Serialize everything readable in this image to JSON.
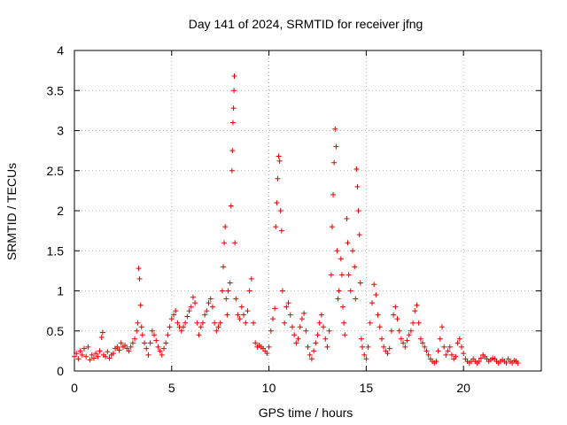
{
  "chart_data": {
    "type": "scatter",
    "title": "Day 141 of 2024, SRMTID for receiver jfng",
    "xlabel": "GPS time / hours",
    "ylabel": "SRMTID / TECUs",
    "xlim": [
      0,
      24
    ],
    "ylim": [
      0,
      4
    ],
    "xticks": [
      0,
      5,
      10,
      15,
      20
    ],
    "yticks": [
      0,
      0.5,
      1,
      1.5,
      2,
      2.5,
      3,
      3.5,
      4
    ],
    "xtick_labels": [
      "0",
      "5",
      "10",
      "15",
      "20"
    ],
    "ytick_labels": [
      "0",
      "0.5",
      "1",
      "1.5",
      "2",
      "2.5",
      "3",
      "3.5",
      "4"
    ],
    "grid": true,
    "marker": "+",
    "color": "#e00000",
    "series": [
      {
        "name": "SRMTID",
        "points": [
          [
            0.0,
            0.18
          ],
          [
            0.1,
            0.22
          ],
          [
            0.2,
            0.15
          ],
          [
            0.3,
            0.25
          ],
          [
            0.4,
            0.2
          ],
          [
            0.5,
            0.28
          ],
          [
            0.6,
            0.18
          ],
          [
            0.7,
            0.3
          ],
          [
            0.8,
            0.14
          ],
          [
            0.9,
            0.2
          ],
          [
            1.0,
            0.16
          ],
          [
            1.1,
            0.22
          ],
          [
            1.2,
            0.18
          ],
          [
            1.3,
            0.25
          ],
          [
            1.4,
            0.42
          ],
          [
            1.45,
            0.48
          ],
          [
            1.5,
            0.2
          ],
          [
            1.6,
            0.18
          ],
          [
            1.7,
            0.24
          ],
          [
            1.8,
            0.16
          ],
          [
            1.9,
            0.2
          ],
          [
            2.0,
            0.22
          ],
          [
            2.1,
            0.28
          ],
          [
            2.2,
            0.3
          ],
          [
            2.3,
            0.26
          ],
          [
            2.4,
            0.35
          ],
          [
            2.5,
            0.3
          ],
          [
            2.6,
            0.32
          ],
          [
            2.7,
            0.28
          ],
          [
            2.8,
            0.25
          ],
          [
            2.9,
            0.3
          ],
          [
            3.0,
            0.35
          ],
          [
            3.1,
            0.4
          ],
          [
            3.2,
            0.5
          ],
          [
            3.25,
            0.6
          ],
          [
            3.3,
            1.28
          ],
          [
            3.35,
            1.15
          ],
          [
            3.4,
            0.82
          ],
          [
            3.45,
            0.55
          ],
          [
            3.5,
            0.45
          ],
          [
            3.6,
            0.35
          ],
          [
            3.7,
            0.28
          ],
          [
            3.8,
            0.2
          ],
          [
            3.9,
            0.35
          ],
          [
            4.0,
            0.5
          ],
          [
            4.1,
            0.45
          ],
          [
            4.2,
            0.38
          ],
          [
            4.3,
            0.3
          ],
          [
            4.4,
            0.25
          ],
          [
            4.5,
            0.2
          ],
          [
            4.6,
            0.28
          ],
          [
            4.7,
            0.35
          ],
          [
            4.8,
            0.45
          ],
          [
            4.9,
            0.55
          ],
          [
            5.0,
            0.65
          ],
          [
            5.1,
            0.7
          ],
          [
            5.2,
            0.75
          ],
          [
            5.3,
            0.6
          ],
          [
            5.4,
            0.55
          ],
          [
            5.5,
            0.5
          ],
          [
            5.6,
            0.55
          ],
          [
            5.7,
            0.6
          ],
          [
            5.8,
            0.68
          ],
          [
            5.9,
            0.75
          ],
          [
            6.0,
            0.8
          ],
          [
            6.1,
            0.92
          ],
          [
            6.2,
            0.85
          ],
          [
            6.3,
            0.6
          ],
          [
            6.4,
            0.45
          ],
          [
            6.5,
            0.55
          ],
          [
            6.6,
            0.6
          ],
          [
            6.7,
            0.7
          ],
          [
            6.8,
            0.75
          ],
          [
            6.9,
            0.85
          ],
          [
            7.0,
            0.9
          ],
          [
            7.1,
            0.8
          ],
          [
            7.2,
            0.6
          ],
          [
            7.3,
            0.5
          ],
          [
            7.4,
            0.55
          ],
          [
            7.5,
            0.6
          ],
          [
            7.6,
            1.0
          ],
          [
            7.65,
            1.3
          ],
          [
            7.7,
            1.6
          ],
          [
            7.75,
            1.8
          ],
          [
            7.8,
            0.9
          ],
          [
            7.85,
            0.7
          ],
          [
            7.9,
            1.0
          ],
          [
            8.0,
            1.1
          ],
          [
            8.05,
            2.06
          ],
          [
            8.1,
            2.5
          ],
          [
            8.12,
            2.75
          ],
          [
            8.15,
            3.1
          ],
          [
            8.18,
            3.28
          ],
          [
            8.2,
            3.5
          ],
          [
            8.22,
            3.68
          ],
          [
            8.25,
            1.6
          ],
          [
            8.3,
            0.9
          ],
          [
            8.4,
            0.7
          ],
          [
            8.5,
            0.65
          ],
          [
            8.6,
            0.8
          ],
          [
            8.7,
            0.7
          ],
          [
            8.8,
            0.6
          ],
          [
            8.9,
            0.75
          ],
          [
            9.0,
            1.0
          ],
          [
            9.1,
            1.15
          ],
          [
            9.2,
            0.6
          ],
          [
            9.3,
            0.35
          ],
          [
            9.4,
            0.3
          ],
          [
            9.5,
            0.32
          ],
          [
            9.6,
            0.3
          ],
          [
            9.7,
            0.28
          ],
          [
            9.8,
            0.25
          ],
          [
            9.9,
            0.22
          ],
          [
            10.0,
            0.3
          ],
          [
            10.1,
            0.5
          ],
          [
            10.2,
            0.65
          ],
          [
            10.3,
            0.78
          ],
          [
            10.35,
            1.8
          ],
          [
            10.4,
            2.1
          ],
          [
            10.45,
            2.4
          ],
          [
            10.5,
            2.68
          ],
          [
            10.55,
            2.62
          ],
          [
            10.6,
            2.0
          ],
          [
            10.65,
            1.75
          ],
          [
            10.7,
            1.0
          ],
          [
            10.8,
            0.6
          ],
          [
            10.9,
            0.8
          ],
          [
            11.0,
            0.85
          ],
          [
            11.1,
            0.7
          ],
          [
            11.2,
            0.55
          ],
          [
            11.3,
            0.45
          ],
          [
            11.4,
            0.35
          ],
          [
            11.5,
            0.4
          ],
          [
            11.6,
            0.55
          ],
          [
            11.7,
            0.65
          ],
          [
            11.8,
            0.72
          ],
          [
            11.9,
            0.5
          ],
          [
            12.0,
            0.3
          ],
          [
            12.1,
            0.2
          ],
          [
            12.2,
            0.15
          ],
          [
            12.3,
            0.25
          ],
          [
            12.4,
            0.35
          ],
          [
            12.5,
            0.45
          ],
          [
            12.6,
            0.6
          ],
          [
            12.7,
            0.7
          ],
          [
            12.8,
            0.55
          ],
          [
            12.9,
            0.4
          ],
          [
            13.0,
            0.3
          ],
          [
            13.1,
            0.5
          ],
          [
            13.2,
            1.2
          ],
          [
            13.25,
            1.8
          ],
          [
            13.3,
            2.2
          ],
          [
            13.35,
            2.6
          ],
          [
            13.4,
            3.02
          ],
          [
            13.45,
            2.8
          ],
          [
            13.5,
            1.5
          ],
          [
            13.55,
            0.9
          ],
          [
            13.6,
            1.0
          ],
          [
            13.7,
            1.4
          ],
          [
            13.75,
            1.2
          ],
          [
            13.8,
            0.8
          ],
          [
            13.85,
            0.6
          ],
          [
            13.9,
            0.45
          ],
          [
            14.0,
            1.9
          ],
          [
            14.05,
            1.6
          ],
          [
            14.1,
            1.2
          ],
          [
            14.2,
            1.0
          ],
          [
            14.3,
            1.5
          ],
          [
            14.4,
            1.3
          ],
          [
            14.45,
            0.9
          ],
          [
            14.5,
            2.52
          ],
          [
            14.55,
            2.3
          ],
          [
            14.6,
            2.0
          ],
          [
            14.65,
            1.7
          ],
          [
            14.7,
            1.1
          ],
          [
            14.75,
            0.4
          ],
          [
            14.8,
            0.3
          ],
          [
            14.9,
            0.2
          ],
          [
            15.0,
            0.15
          ],
          [
            15.1,
            0.3
          ],
          [
            15.2,
            0.6
          ],
          [
            15.3,
            0.85
          ],
          [
            15.4,
            1.08
          ],
          [
            15.5,
            0.95
          ],
          [
            15.6,
            0.7
          ],
          [
            15.7,
            0.55
          ],
          [
            15.8,
            0.4
          ],
          [
            15.9,
            0.3
          ],
          [
            16.0,
            0.25
          ],
          [
            16.1,
            0.22
          ],
          [
            16.2,
            0.28
          ],
          [
            16.3,
            0.5
          ],
          [
            16.4,
            0.7
          ],
          [
            16.5,
            0.8
          ],
          [
            16.6,
            0.65
          ],
          [
            16.7,
            0.5
          ],
          [
            16.8,
            0.4
          ],
          [
            16.9,
            0.35
          ],
          [
            17.0,
            0.3
          ],
          [
            17.1,
            0.38
          ],
          [
            17.2,
            0.45
          ],
          [
            17.3,
            0.5
          ],
          [
            17.4,
            0.6
          ],
          [
            17.5,
            0.75
          ],
          [
            17.6,
            0.82
          ],
          [
            17.7,
            0.6
          ],
          [
            17.8,
            0.4
          ],
          [
            17.9,
            0.35
          ],
          [
            18.0,
            0.3
          ],
          [
            18.1,
            0.25
          ],
          [
            18.2,
            0.2
          ],
          [
            18.3,
            0.15
          ],
          [
            18.4,
            0.12
          ],
          [
            18.5,
            0.1
          ],
          [
            18.6,
            0.12
          ],
          [
            18.7,
            0.25
          ],
          [
            18.8,
            0.4
          ],
          [
            18.9,
            0.55
          ],
          [
            19.0,
            0.3
          ],
          [
            19.1,
            0.2
          ],
          [
            19.2,
            0.25
          ],
          [
            19.3,
            0.3
          ],
          [
            19.4,
            0.2
          ],
          [
            19.5,
            0.15
          ],
          [
            19.6,
            0.18
          ],
          [
            19.7,
            0.35
          ],
          [
            19.8,
            0.4
          ],
          [
            19.9,
            0.3
          ],
          [
            20.0,
            0.22
          ],
          [
            20.1,
            0.15
          ],
          [
            20.2,
            0.12
          ],
          [
            20.3,
            0.1
          ],
          [
            20.4,
            0.12
          ],
          [
            20.5,
            0.15
          ],
          [
            20.6,
            0.12
          ],
          [
            20.7,
            0.1
          ],
          [
            20.8,
            0.12
          ],
          [
            20.9,
            0.16
          ],
          [
            21.0,
            0.2
          ],
          [
            21.1,
            0.18
          ],
          [
            21.2,
            0.15
          ],
          [
            21.3,
            0.12
          ],
          [
            21.4,
            0.14
          ],
          [
            21.5,
            0.16
          ],
          [
            21.6,
            0.15
          ],
          [
            21.7,
            0.12
          ],
          [
            21.8,
            0.1
          ],
          [
            21.9,
            0.12
          ],
          [
            22.0,
            0.14
          ],
          [
            22.1,
            0.12
          ],
          [
            22.2,
            0.1
          ],
          [
            22.3,
            0.15
          ],
          [
            22.4,
            0.12
          ],
          [
            22.5,
            0.1
          ],
          [
            22.6,
            0.13
          ],
          [
            22.7,
            0.12
          ],
          [
            22.8,
            0.1
          ]
        ]
      }
    ]
  }
}
